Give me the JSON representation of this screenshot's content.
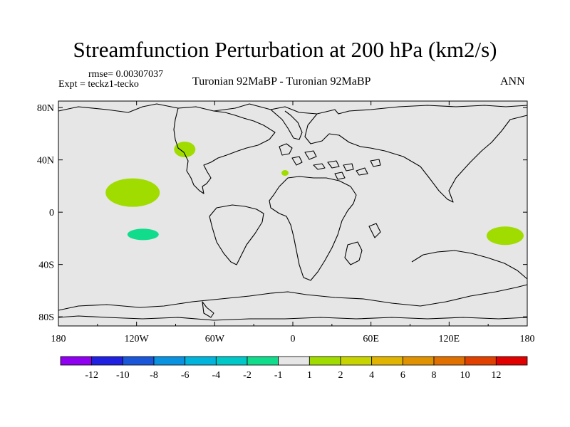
{
  "header": {
    "title": "Streamfunction Perturbation at 200 hPa (km2/s)",
    "rmse": "rmse= 0.00307037",
    "expt": "Expt = teckz1-tecko",
    "comparison": "Turonian  92MaBP - Turonian  92MaBP",
    "season": "ANN"
  },
  "map": {
    "background_color": "#e6e6e6",
    "lat_labels": [
      "80N",
      "40N",
      "0",
      "40S",
      "80S"
    ],
    "lon_labels": [
      "180",
      "120W",
      "60W",
      "0",
      "60E",
      "120E",
      "180"
    ],
    "anomalies": [
      {
        "name": "north-pacific-positive-anomaly",
        "lon": -123,
        "lat": 15,
        "color": "#a0dc00"
      },
      {
        "name": "south-pacific-negative-anomaly",
        "lon": -115,
        "lat": -17,
        "color": "#10dc8c"
      },
      {
        "name": "north-america-positive-anomaly",
        "lon": -83,
        "lat": 48,
        "color": "#a0dc00"
      },
      {
        "name": "tethys-positive-anomaly",
        "lon": -6,
        "lat": 30,
        "color": "#a0dc00"
      },
      {
        "name": "southwest-pacific-positive-anomaly",
        "lon": 163,
        "lat": -18,
        "color": "#a0dc00"
      }
    ]
  },
  "colorbar": {
    "colors": [
      "#9000f0",
      "#2020e0",
      "#1a56d8",
      "#0a92e0",
      "#00b4dc",
      "#00c8c8",
      "#10dc8c",
      "#e6e6e6",
      "#a0dc00",
      "#c8d400",
      "#e0b400",
      "#e09200",
      "#e07000",
      "#e04000",
      "#e00000"
    ],
    "labels": [
      "-12",
      "-10",
      "-8",
      "-6",
      "-4",
      "-2",
      "-1",
      "1",
      "2",
      "4",
      "6",
      "8",
      "10",
      "12"
    ]
  }
}
